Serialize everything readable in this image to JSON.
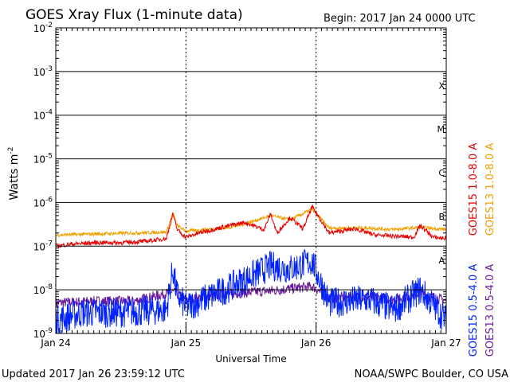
{
  "chart_data": {
    "type": "line",
    "title": "GOES Xray Flux (1-minute data)",
    "begin_label": "Begin:  2017 Jan 24 0000 UTC",
    "xlabel": "Universal Time",
    "ylabel": "Watts m",
    "ylabel_sup": "-2",
    "y_scale": "log",
    "ylim": [
      1e-09,
      0.01
    ],
    "y_ticks": [
      {
        "base": "10",
        "exp": "-9",
        "value": 1e-09
      },
      {
        "base": "10",
        "exp": "-8",
        "value": 1e-08
      },
      {
        "base": "10",
        "exp": "-7",
        "value": 1e-07
      },
      {
        "base": "10",
        "exp": "-6",
        "value": 1e-06
      },
      {
        "base": "10",
        "exp": "-5",
        "value": 1e-05
      },
      {
        "base": "10",
        "exp": "-4",
        "value": 0.0001
      },
      {
        "base": "10",
        "exp": "-3",
        "value": 0.001
      },
      {
        "base": "10",
        "exp": "-2",
        "value": 0.01
      }
    ],
    "x_ticks": [
      "Jan 24",
      "Jan 25",
      "Jan 26",
      "Jan 27"
    ],
    "flare_classes": [
      {
        "label": "X",
        "value": 0.0005
      },
      {
        "label": "M",
        "value": 5e-05
      },
      {
        "label": "C",
        "value": 5e-06
      },
      {
        "label": "B",
        "value": 5e-07
      },
      {
        "label": "A",
        "value": 5e-08
      }
    ],
    "grid": "horizontal at each decade",
    "series": [
      {
        "name": "GOES15 1.0-8.0 A",
        "color": "#e60000",
        "baseline": 1.3e-07,
        "x_days": [
          0,
          0.1,
          0.3,
          0.5,
          0.7,
          0.85,
          0.9,
          0.93,
          0.96,
          1.0,
          1.1,
          1.3,
          1.45,
          1.6,
          1.65,
          1.7,
          1.8,
          1.9,
          1.97,
          2.1,
          2.3,
          2.45,
          2.6,
          2.75,
          2.8,
          2.9,
          3.0
        ],
        "values": [
          1e-07,
          1.1e-07,
          1.2e-07,
          1.2e-07,
          1.3e-07,
          1.5e-07,
          5.5e-07,
          2.5e-07,
          2e-07,
          1.6e-07,
          2e-07,
          2.8e-07,
          3.5e-07,
          2.4e-07,
          5.5e-07,
          2e-07,
          4.5e-07,
          2.5e-07,
          8e-07,
          2e-07,
          2.5e-07,
          1.8e-07,
          1.7e-07,
          1.6e-07,
          3e-07,
          1.6e-07,
          1.5e-07
        ]
      },
      {
        "name": "GOES13 1.0-8.0 A",
        "color": "#f0a000",
        "baseline": 2e-07,
        "x_days": [
          0,
          0.3,
          0.6,
          0.85,
          0.9,
          0.93,
          1.0,
          1.3,
          1.45,
          1.65,
          1.8,
          1.97,
          2.1,
          2.4,
          2.6,
          2.8,
          3.0
        ],
        "values": [
          1.8e-07,
          1.9e-07,
          2e-07,
          2.1e-07,
          5.8e-07,
          3e-07,
          2.2e-07,
          2.6e-07,
          3.2e-07,
          5e-07,
          4e-07,
          7e-07,
          2.6e-07,
          2.6e-07,
          2.4e-07,
          2.7e-07,
          2.4e-07
        ]
      },
      {
        "name": "GOES15 0.5-4.0 A",
        "color": "#0022ff",
        "baseline": 3e-09,
        "x_days": [
          0,
          0.2,
          0.5,
          0.85,
          0.9,
          0.93,
          1.0,
          1.3,
          1.65,
          1.8,
          1.97,
          2.1,
          2.4,
          2.6,
          2.8,
          3.0
        ],
        "values": [
          2e-09,
          3e-09,
          3e-09,
          3.5e-09,
          3e-08,
          8e-09,
          4e-09,
          1e-08,
          3.5e-08,
          3e-08,
          4.5e-08,
          5e-09,
          6e-09,
          3.5e-09,
          1e-08,
          2e-09
        ]
      },
      {
        "name": "GOES13 0.5-4.0 A",
        "color": "#6a1a9a",
        "baseline": 5.5e-09,
        "x_days": [
          0,
          0.3,
          0.6,
          0.9,
          1.0,
          1.3,
          1.65,
          1.97,
          2.1,
          2.4,
          2.6,
          2.8,
          3.0
        ],
        "values": [
          5e-09,
          5.5e-09,
          5.5e-09,
          9e-09,
          6e-09,
          8e-09,
          9.5e-09,
          1.2e-08,
          6.5e-09,
          7e-09,
          6e-09,
          8.5e-09,
          5.5e-09
        ]
      }
    ],
    "legend_placement": "right, rotated vertical"
  },
  "footer": {
    "updated": "Updated 2017 Jan 26 23:59:12 UTC",
    "credit": "NOAA/SWPC Boulder, CO USA"
  }
}
